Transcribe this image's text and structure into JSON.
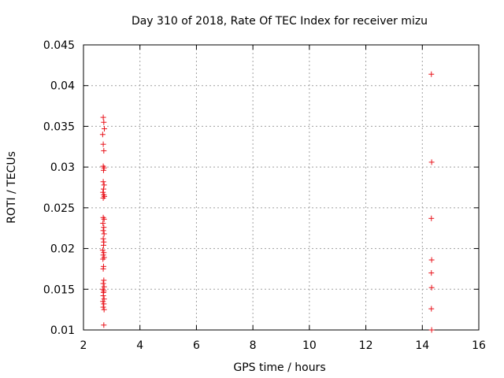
{
  "chart_data": {
    "type": "scatter",
    "title": "Day 310 of 2018, Rate Of TEC Index for receiver mizu",
    "xlabel": "GPS time / hours",
    "ylabel": "ROTI / TECUs",
    "xlim": [
      2,
      16
    ],
    "ylim": [
      0.01,
      0.045
    ],
    "xticks": [
      2,
      4,
      6,
      8,
      10,
      12,
      14,
      16
    ],
    "xtick_labels": [
      "2",
      "4",
      "6",
      "8",
      "10",
      "12",
      "14",
      "16"
    ],
    "yticks": [
      0.01,
      0.015,
      0.02,
      0.025,
      0.03,
      0.035,
      0.04,
      0.045
    ],
    "ytick_labels": [
      "0.01",
      "0.015",
      "0.02",
      "0.025",
      "0.03",
      "0.035",
      "0.04",
      "0.045"
    ],
    "grid": true,
    "marker": "+",
    "color": "#e8121a",
    "series": [
      {
        "name": "ROTI",
        "points": [
          [
            2.7,
            0.0361
          ],
          [
            2.72,
            0.0355
          ],
          [
            2.74,
            0.0347
          ],
          [
            2.68,
            0.034
          ],
          [
            2.7,
            0.0328
          ],
          [
            2.72,
            0.032
          ],
          [
            2.7,
            0.0301
          ],
          [
            2.73,
            0.0299
          ],
          [
            2.71,
            0.0296
          ],
          [
            2.7,
            0.0282
          ],
          [
            2.73,
            0.0278
          ],
          [
            2.71,
            0.0273
          ],
          [
            2.69,
            0.0269
          ],
          [
            2.72,
            0.0266
          ],
          [
            2.7,
            0.0262
          ],
          [
            2.74,
            0.0264
          ],
          [
            2.7,
            0.0238
          ],
          [
            2.73,
            0.0236
          ],
          [
            2.69,
            0.0231
          ],
          [
            2.72,
            0.0226
          ],
          [
            2.7,
            0.0222
          ],
          [
            2.73,
            0.0218
          ],
          [
            2.7,
            0.0212
          ],
          [
            2.72,
            0.0208
          ],
          [
            2.71,
            0.0204
          ],
          [
            2.68,
            0.0198
          ],
          [
            2.72,
            0.0195
          ],
          [
            2.7,
            0.0192
          ],
          [
            2.73,
            0.0189
          ],
          [
            2.69,
            0.0187
          ],
          [
            2.71,
            0.0178
          ],
          [
            2.7,
            0.0175
          ],
          [
            2.72,
            0.0161
          ],
          [
            2.7,
            0.0157
          ],
          [
            2.73,
            0.0153
          ],
          [
            2.69,
            0.015
          ],
          [
            2.72,
            0.0148
          ],
          [
            2.71,
            0.0146
          ],
          [
            2.7,
            0.0142
          ],
          [
            2.73,
            0.0138
          ],
          [
            2.69,
            0.0135
          ],
          [
            2.72,
            0.0132
          ],
          [
            2.7,
            0.0128
          ],
          [
            2.73,
            0.0125
          ],
          [
            2.72,
            0.0106
          ],
          [
            14.32,
            0.0414
          ],
          [
            14.33,
            0.0306
          ],
          [
            14.32,
            0.0237
          ],
          [
            14.33,
            0.0186
          ],
          [
            14.32,
            0.017
          ],
          [
            14.33,
            0.0152
          ],
          [
            14.32,
            0.0126
          ],
          [
            14.33,
            0.01
          ]
        ]
      }
    ]
  }
}
